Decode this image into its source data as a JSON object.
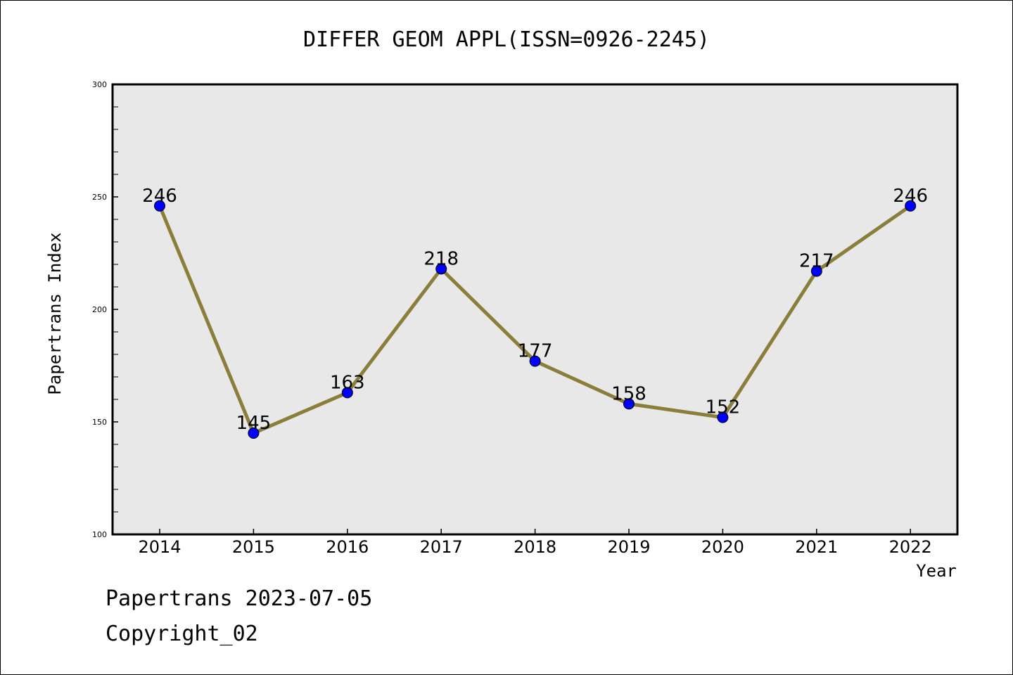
{
  "chart_data": {
    "type": "line",
    "title": "DIFFER GEOM APPL(ISSN=0926-2245)",
    "xlabel": "Year",
    "ylabel": "Papertrans Index",
    "x": [
      "2014",
      "2015",
      "2016",
      "2017",
      "2018",
      "2019",
      "2020",
      "2021",
      "2022"
    ],
    "series": [
      {
        "values": [
          246,
          145,
          163,
          218,
          177,
          158,
          152,
          217,
          246
        ]
      }
    ],
    "ylim": [
      100,
      300
    ],
    "yticks": [
      100,
      150,
      200,
      250,
      300
    ],
    "grid": false,
    "line_color": "#8b7d3a",
    "marker_color": "#0000ff",
    "plot_background": "#e8e8e8"
  },
  "footer": {
    "line1": "Papertrans 2023-07-05",
    "line2": "Copyright_02"
  }
}
